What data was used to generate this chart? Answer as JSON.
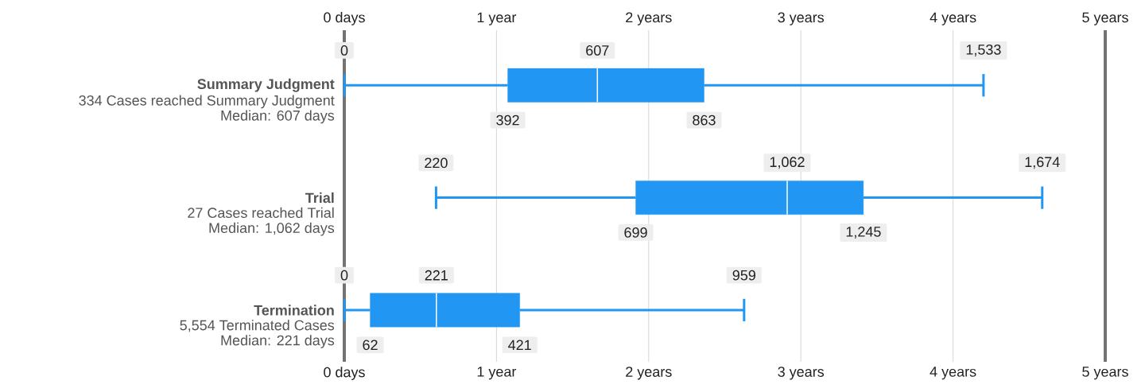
{
  "chart_data": {
    "type": "box",
    "orientation": "horizontal",
    "categories": [
      "Summary Judgment",
      "Trial",
      "Termination"
    ],
    "annotations": [
      "334 Cases reached Summary Judgment",
      "Median: 607 days",
      "27 Cases reached Trial",
      "Median: 1,062 days",
      "5,554 Terminated Cases",
      "Median: 221 days"
    ],
    "boxes": [
      {
        "low": 0,
        "q1": 1.074,
        "median": 1.663,
        "q3": 2.364,
        "high": 4.2
      },
      {
        "low": 0.603,
        "q1": 1.915,
        "median": 2.91,
        "q3": 3.411,
        "high": 4.586
      },
      {
        "low": 0,
        "q1": 0.17,
        "median": 0.605,
        "q3": 1.153,
        "high": 2.627
      }
    ],
    "value_labels": [
      {
        "low": "0",
        "q1": "392",
        "median": "607",
        "q3": "863",
        "high": "1,533"
      },
      {
        "low": "220",
        "q1": "699",
        "median": "1,062",
        "q3": "1,245",
        "high": "1,674"
      },
      {
        "low": "0",
        "q1": "62",
        "median": "221",
        "q3": "421",
        "high": "959"
      }
    ],
    "color": "#2196f3",
    "grid": "x",
    "xlim": [
      0,
      5
    ],
    "xticks": [
      {
        "value": 0,
        "label": "0 days"
      },
      {
        "value": 1,
        "label": "1 year"
      },
      {
        "value": 2,
        "label": "2 years"
      },
      {
        "value": 3,
        "label": "3 years"
      },
      {
        "value": 4,
        "label": "4 years"
      },
      {
        "value": 5,
        "label": "5 years"
      }
    ],
    "x2lim": [
      0,
      5
    ],
    "x2ticks": [
      {
        "value": 0,
        "label": "0 days"
      },
      {
        "value": 1,
        "label": "1 year"
      },
      {
        "value": 2,
        "label": "2 years"
      },
      {
        "value": 3,
        "label": "3 years"
      },
      {
        "value": 4,
        "label": "4 years"
      },
      {
        "value": 5,
        "label": "5 years"
      }
    ]
  }
}
